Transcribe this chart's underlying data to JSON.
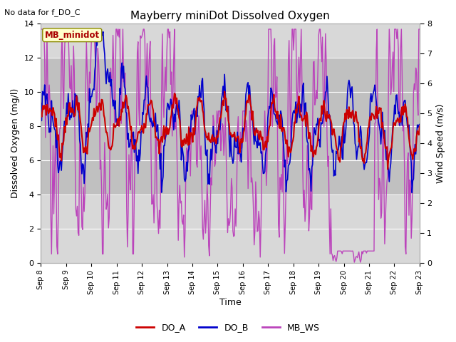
{
  "title": "Mayberry miniDot Dissolved Oxygen",
  "no_data_text": "No data for f_DO_C",
  "station_label": "MB_minidot",
  "xlabel": "Time",
  "ylabel_left": "Dissolved Oxygen (mg/l)",
  "ylabel_right": "Wind Speed (m/s)",
  "ylim_left": [
    0,
    14
  ],
  "ylim_right": [
    0.0,
    8.0
  ],
  "yticks_left": [
    0,
    2,
    4,
    6,
    8,
    10,
    12,
    14
  ],
  "yticks_right": [
    0.0,
    1.0,
    2.0,
    3.0,
    4.0,
    5.0,
    6.0,
    7.0,
    8.0
  ],
  "shade_band": [
    4,
    12
  ],
  "color_DOA": "#cc0000",
  "color_DOB": "#0000cc",
  "color_MBWS": "#bb44bb",
  "bg_color": "#d8d8d8",
  "shade_color": "#c0c0c0",
  "legend_entries": [
    "DO_A",
    "DO_B",
    "MB_WS"
  ],
  "xtick_labels": [
    "Sep 8",
    "Sep 9",
    "Sep 10",
    "Sep 11",
    "Sep 12",
    "Sep 13",
    "Sep 14",
    "Sep 15",
    "Sep 16",
    "Sep 17",
    "Sep 18",
    "Sep 19",
    "Sep 20",
    "Sep 21",
    "Sep 22",
    "Sep 23"
  ],
  "n_points": 500,
  "lw_doa": 1.5,
  "lw_dob": 1.2,
  "lw_ws": 1.0
}
